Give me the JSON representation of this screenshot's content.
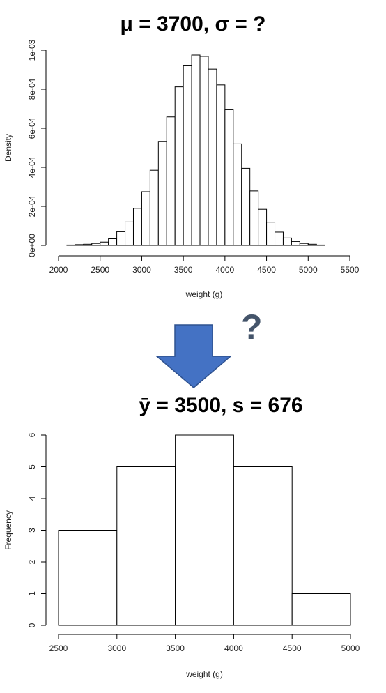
{
  "title_top": "μ = 3700, σ = ?",
  "title_bottom": "ȳ = 3500, s = 676",
  "question_mark": "?",
  "arrow_color": "#4472c4",
  "chart_data": [
    {
      "type": "bar",
      "xlabel": "weight (g)",
      "ylabel": "Density",
      "xlim": [
        2000,
        5500
      ],
      "ylim": [
        0,
        0.001
      ],
      "xticks": [
        "2000",
        "2500",
        "3000",
        "3500",
        "4000",
        "4500",
        "5000",
        "5500"
      ],
      "yticks": [
        "0e+00",
        "2e-04",
        "4e-04",
        "6e-04",
        "8e-04",
        "1e-03"
      ],
      "bin_width": 100,
      "bins": [
        2100,
        2200,
        2300,
        2400,
        2500,
        2600,
        2700,
        2800,
        2900,
        3000,
        3100,
        3200,
        3300,
        3400,
        3500,
        3600,
        3700,
        3800,
        3900,
        4000,
        4100,
        4200,
        4300,
        4400,
        4500,
        4600,
        4700,
        4800,
        4900,
        5000,
        5100
      ],
      "values": [
        2e-06,
        4e-06,
        6e-06,
        1e-05,
        1.7e-05,
        3.4e-05,
        7e-05,
        0.00012,
        0.00019,
        0.000275,
        0.000385,
        0.000533,
        0.000658,
        0.000812,
        0.000923,
        0.000975,
        0.000968,
        0.000903,
        0.000822,
        0.000695,
        0.00052,
        0.000395,
        0.000279,
        0.000185,
        0.000119,
        6.8e-05,
        3.8e-05,
        2e-05,
        1e-05,
        6e-06,
        2e-06
      ]
    },
    {
      "type": "bar",
      "xlabel": "weight (g)",
      "ylabel": "Frequency",
      "xlim": [
        2500,
        5000
      ],
      "ylim": [
        0,
        6
      ],
      "xticks": [
        "2500",
        "3000",
        "3500",
        "4000",
        "4500",
        "5000"
      ],
      "yticks": [
        "0",
        "1",
        "2",
        "3",
        "4",
        "5",
        "6"
      ],
      "bin_width": 500,
      "bins": [
        2500,
        3000,
        3500,
        4000,
        4500
      ],
      "values": [
        3,
        5,
        6,
        5,
        1
      ]
    }
  ]
}
